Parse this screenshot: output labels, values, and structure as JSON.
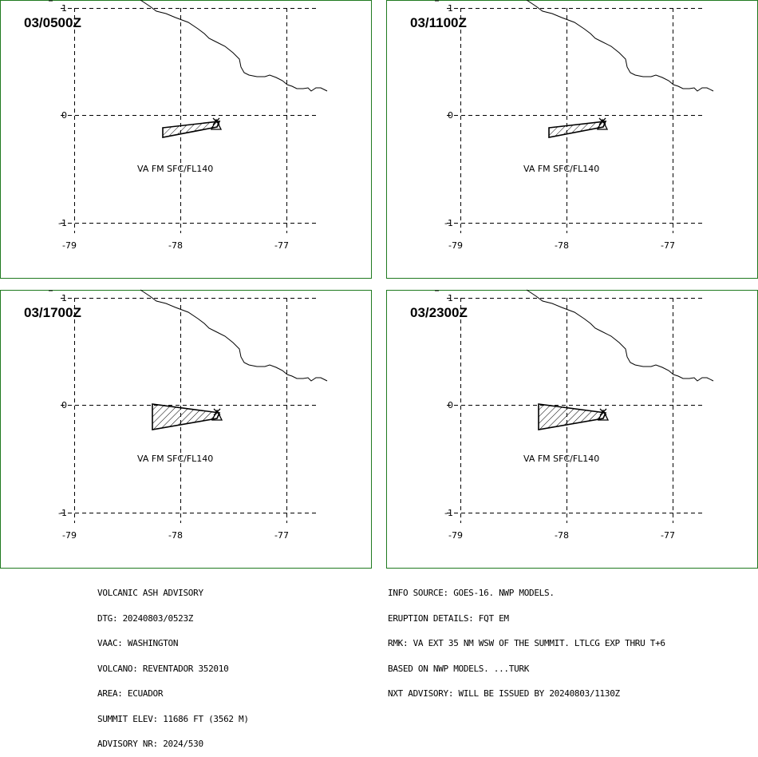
{
  "map": {
    "lat_ticks": [
      "1",
      "0",
      "-1"
    ],
    "lon_ticks": [
      "-79",
      "-78",
      "-77"
    ],
    "colors": {
      "frame": "#1f7a1f",
      "grid": "#000000",
      "coast": "#000000",
      "ash": "#000000"
    },
    "volcano_symbol": "x-mark",
    "panels": [
      {
        "time": "03/0500Z",
        "va_label": "VA FM SFC/FL140",
        "ash_area": "narrow wedge extending west-southwest from summit"
      },
      {
        "time": "03/1100Z",
        "va_label": "VA FM SFC/FL140",
        "ash_area": "narrow wedge extending west-southwest from summit"
      },
      {
        "time": "03/1700Z",
        "va_label": "VA FM SFC/FL140",
        "ash_area": "wide wedge extending west from summit"
      },
      {
        "time": "03/2300Z",
        "va_label": "VA FM SFC/FL140",
        "ash_area": "wide wedge extending west from summit"
      }
    ]
  },
  "advisory_left": [
    "VOLCANIC ASH ADVISORY",
    "DTG: 20240803/0523Z",
    "VAAC: WASHINGTON",
    "VOLCANO: REVENTADOR 352010",
    "AREA: ECUADOR",
    "SUMMIT ELEV: 11686 FT (3562 M)",
    "ADVISORY NR: 2024/530"
  ],
  "advisory_right": [
    "INFO SOURCE: GOES-16. NWP MODELS.",
    "ERUPTION DETAILS: FQT EM",
    "RMK: VA EXT 35 NM WSW OF THE SUMMIT. LTLCG EXP THRU T+6",
    "BASED ON NWP MODELS. ...TURK",
    "NXT ADVISORY: WILL BE ISSUED BY 20240803/1130Z"
  ]
}
